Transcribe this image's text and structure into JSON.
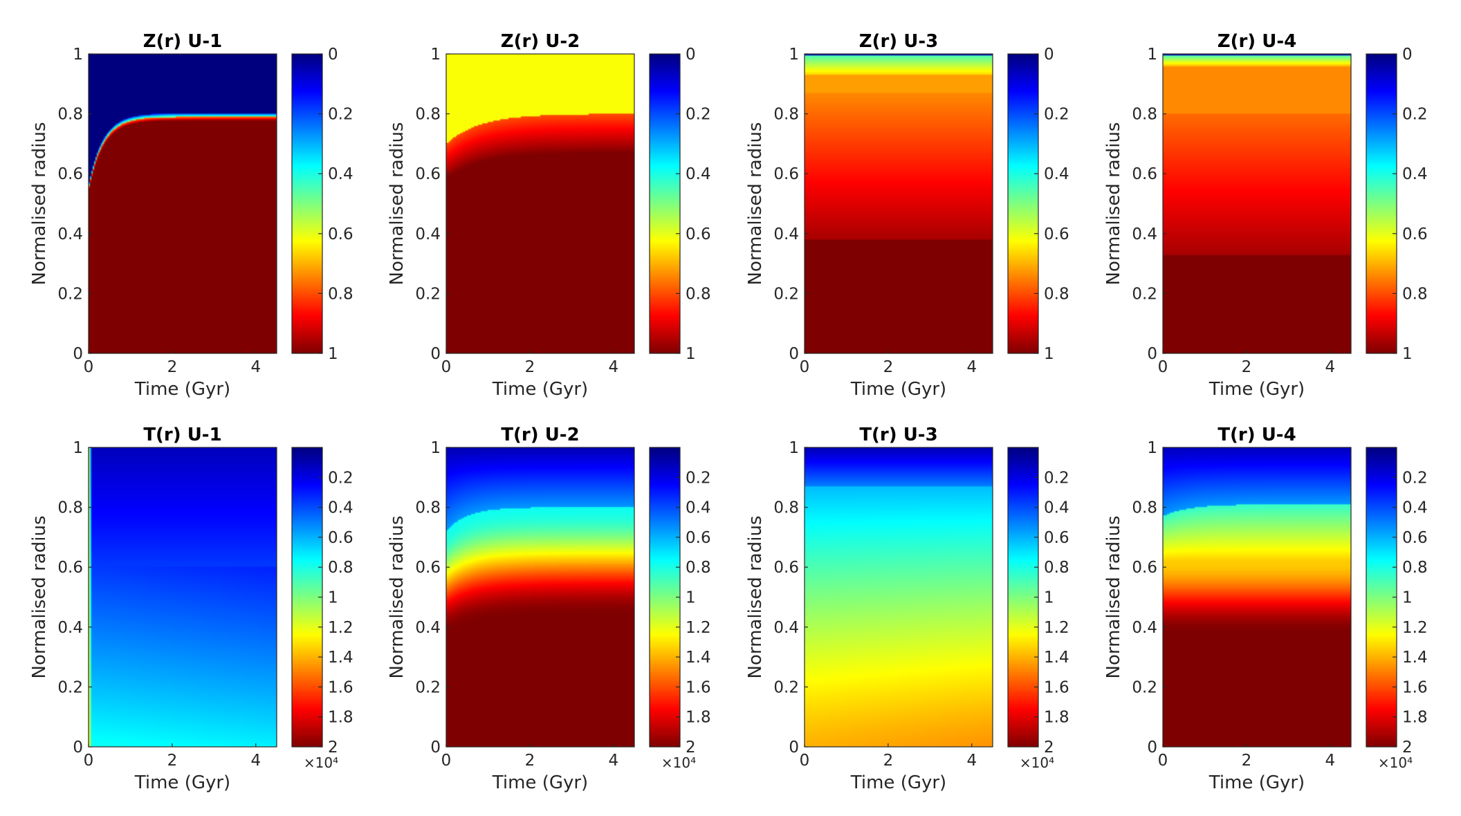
{
  "colors": {
    "jet_stops": [
      "#00007f",
      "#0000ff",
      "#007fff",
      "#00ffff",
      "#7fff7f",
      "#ffff00",
      "#ff7f00",
      "#ff0000",
      "#7f0000"
    ],
    "axis": "#262626"
  },
  "chart_data": [
    {
      "id": "z-u1",
      "type": "heatmap",
      "title": "Z(r) U-1",
      "xlabel": "Time (Gyr)",
      "ylabel": "Normalised radius",
      "xlim": [
        0,
        4.5
      ],
      "ylim": [
        0,
        1
      ],
      "x_ticks": [
        "0",
        "2",
        "4"
      ],
      "y_ticks": [
        "0",
        "0.2",
        "0.4",
        "0.6",
        "0.8",
        "1"
      ],
      "colorbar": {
        "direction": "reversed",
        "range": [
          0,
          1
        ],
        "ticks": [
          "0",
          "0.2",
          "0.4",
          "0.6",
          "0.8",
          "1"
        ],
        "exponent": ""
      },
      "boundary": {
        "r0": 0.55,
        "r_inf": 0.79,
        "tau": 0.35
      },
      "band": 0.012,
      "core_value": 1,
      "outer_value": 0
    },
    {
      "id": "z-u2",
      "type": "heatmap",
      "title": "Z(r) U-2",
      "xlabel": "Time (Gyr)",
      "ylabel": "Normalised radius",
      "xlim": [
        0,
        4.5
      ],
      "ylim": [
        0,
        1
      ],
      "x_ticks": [
        "0",
        "2",
        "4"
      ],
      "y_ticks": [
        "0",
        "0.2",
        "0.4",
        "0.6",
        "0.8",
        "1"
      ],
      "colorbar": {
        "direction": "reversed",
        "range": [
          0,
          1
        ],
        "ticks": [
          "0",
          "0.2",
          "0.4",
          "0.6",
          "0.8",
          "1"
        ],
        "exponent": ""
      },
      "boundary": {
        "r0": 0.7,
        "r_inf": 0.8,
        "tau": 0.8
      },
      "inner": {
        "r0": 0.58,
        "r_inf": 0.67,
        "tau": 0.8
      },
      "core_value": 1,
      "outer_value": 0.62
    },
    {
      "id": "z-u3",
      "type": "heatmap",
      "title": "Z(r) U-3",
      "xlabel": "Time (Gyr)",
      "ylabel": "Normalised radius",
      "xlim": [
        0,
        4.5
      ],
      "ylim": [
        0,
        1
      ],
      "x_ticks": [
        "0",
        "2",
        "4"
      ],
      "y_ticks": [
        "0",
        "0.2",
        "0.4",
        "0.6",
        "0.8",
        "1"
      ],
      "colorbar": {
        "direction": "reversed",
        "range": [
          0,
          1
        ],
        "ticks": [
          "0",
          "0.2",
          "0.4",
          "0.6",
          "0.8",
          "1"
        ],
        "exponent": ""
      },
      "profile": {
        "core_edge": 0.38,
        "core_value": 1,
        "mid_value": 0.74,
        "plateau_start": 0.87,
        "plateau_end": 0.93,
        "plateau_value": 0.72,
        "surface_value": 0.45
      }
    },
    {
      "id": "z-u4",
      "type": "heatmap",
      "title": "Z(r) U-4",
      "xlabel": "Time (Gyr)",
      "ylabel": "Normalised radius",
      "xlim": [
        0,
        4.5
      ],
      "ylim": [
        0,
        1
      ],
      "x_ticks": [
        "0",
        "2",
        "4"
      ],
      "y_ticks": [
        "0",
        "0.2",
        "0.4",
        "0.6",
        "0.8",
        "1"
      ],
      "colorbar": {
        "direction": "reversed",
        "range": [
          0,
          1
        ],
        "ticks": [
          "0",
          "0.2",
          "0.4",
          "0.6",
          "0.8",
          "1"
        ],
        "exponent": ""
      },
      "profile": {
        "core_edge": 0.33,
        "core_value": 1,
        "mid_value": 0.77,
        "plateau_start": 0.8,
        "plateau_end": 0.96,
        "plateau_value": 0.74,
        "surface_value": 0.45
      }
    },
    {
      "id": "t-u1",
      "type": "heatmap",
      "title": "T(r) U-1",
      "xlabel": "Time (Gyr)",
      "ylabel": "Normalised radius",
      "xlim": [
        0,
        4.5
      ],
      "ylim": [
        0,
        1
      ],
      "x_ticks": [
        "0",
        "2",
        "4"
      ],
      "y_ticks": [
        "0",
        "0.2",
        "0.4",
        "0.6",
        "0.8",
        "1"
      ],
      "colorbar": {
        "direction": "reversed",
        "range": [
          0,
          2
        ],
        "ticks": [
          "0.2",
          "0.4",
          "0.6",
          "0.8",
          "1",
          "1.2",
          "1.4",
          "1.6",
          "1.8",
          "2"
        ],
        "exponent": "×10⁴"
      },
      "profile": {
        "center_value": 0.78,
        "surface_value": 0.12
      }
    },
    {
      "id": "t-u2",
      "type": "heatmap",
      "title": "T(r) U-2",
      "xlabel": "Time (Gyr)",
      "ylabel": "Normalised radius",
      "xlim": [
        0,
        4.5
      ],
      "ylim": [
        0,
        1
      ],
      "x_ticks": [
        "0",
        "2",
        "4"
      ],
      "y_ticks": [
        "0",
        "0.2",
        "0.4",
        "0.6",
        "0.8",
        "1"
      ],
      "colorbar": {
        "direction": "reversed",
        "range": [
          0,
          2
        ],
        "ticks": [
          "0.2",
          "0.4",
          "0.6",
          "0.8",
          "1",
          "1.2",
          "1.4",
          "1.6",
          "1.8",
          "2"
        ],
        "exponent": "×10⁴"
      },
      "profile": {
        "core_edge": 0.44,
        "center_value": 2.0,
        "front": 0.8,
        "front_value": 0.78,
        "surface_value": 0.1
      }
    },
    {
      "id": "t-u3",
      "type": "heatmap",
      "title": "T(r) U-3",
      "xlabel": "Time (Gyr)",
      "ylabel": "Normalised radius",
      "xlim": [
        0,
        4.5
      ],
      "ylim": [
        0,
        1
      ],
      "x_ticks": [
        "0",
        "2",
        "4"
      ],
      "y_ticks": [
        "0",
        "0.2",
        "0.4",
        "0.6",
        "0.8",
        "1"
      ],
      "colorbar": {
        "direction": "reversed",
        "range": [
          0,
          2
        ],
        "ticks": [
          "0.2",
          "0.4",
          "0.6",
          "0.8",
          "1",
          "1.2",
          "1.4",
          "1.6",
          "1.8",
          "2"
        ],
        "exponent": "×10⁴"
      },
      "profile": {
        "center_value": 1.4,
        "mid_value": 0.9,
        "shell": 0.87,
        "shell_value": 0.62,
        "surface_value": 0.1
      }
    },
    {
      "id": "t-u4",
      "type": "heatmap",
      "title": "T(r) U-4",
      "xlabel": "Time (Gyr)",
      "ylabel": "Normalised radius",
      "xlim": [
        0,
        4.5
      ],
      "ylim": [
        0,
        1
      ],
      "x_ticks": [
        "0",
        "2",
        "4"
      ],
      "y_ticks": [
        "0",
        "0.2",
        "0.4",
        "0.6",
        "0.8",
        "1"
      ],
      "colorbar": {
        "direction": "reversed",
        "range": [
          0,
          2
        ],
        "ticks": [
          "0.2",
          "0.4",
          "0.6",
          "0.8",
          "1",
          "1.2",
          "1.4",
          "1.6",
          "1.8",
          "2"
        ],
        "exponent": "×10⁴"
      },
      "profile": {
        "core_edge": 0.38,
        "center_value": 2.0,
        "mid_value": 1.35,
        "front": 0.81,
        "front_value": 0.85,
        "surface_value": 0.12
      }
    }
  ]
}
